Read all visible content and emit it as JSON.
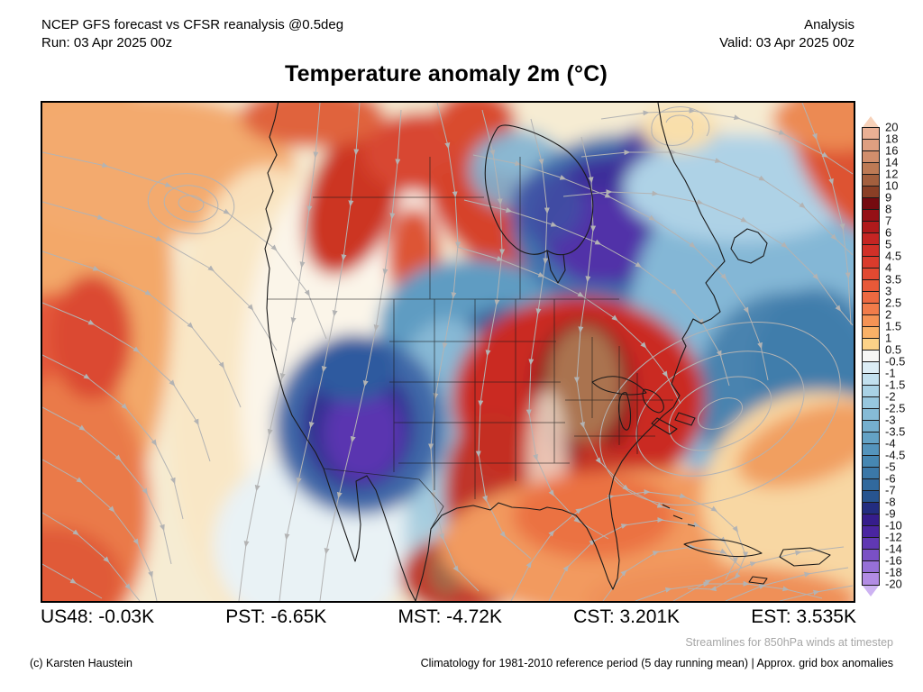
{
  "header": {
    "product_line": "NCEP GFS forecast vs CFSR reanalysis @0.5deg",
    "run_line": "Run: 03 Apr 2025 00z",
    "mode": "Analysis",
    "valid_line": "Valid: 03 Apr 2025 00z"
  },
  "title": "Temperature anomaly 2m (°C)",
  "colorbar": {
    "labels": [
      "20",
      "18",
      "16",
      "14",
      "12",
      "10",
      "9",
      "8",
      "7",
      "6",
      "5",
      "4.5",
      "4",
      "3.5",
      "3",
      "2.5",
      "2",
      "1.5",
      "1",
      "0.5",
      "-0.5",
      "-1",
      "-1.5",
      "-2",
      "-2.5",
      "-3",
      "-3.5",
      "-4",
      "-4.5",
      "-5",
      "-6",
      "-7",
      "-8",
      "-9",
      "-10",
      "-12",
      "-14",
      "-16",
      "-18",
      "-20"
    ],
    "segment_colors": [
      "#eab094",
      "#de9f81",
      "#d18e6c",
      "#bd7a55",
      "#a35f3e",
      "#8a3f26",
      "#750a10",
      "#951016",
      "#b01a1b",
      "#c52523",
      "#d13028",
      "#da3b2c",
      "#e24931",
      "#e85938",
      "#ed6940",
      "#f17c4a",
      "#f59355",
      "#f9b167",
      "#fcd288",
      "#f7f7f5",
      "#dcedf5",
      "#c2e0ee",
      "#a9d2e5",
      "#97c7de",
      "#86bbd6",
      "#75afce",
      "#64a2c5",
      "#5494bc",
      "#4687b2",
      "#3b78a8",
      "#31699d",
      "#27548f",
      "#232d80",
      "#361d8c",
      "#4a25a1",
      "#6038b3",
      "#7a50c5",
      "#9670d7",
      "#b28ce4"
    ],
    "arrow_top_color": "#f7d2ba",
    "arrow_bottom_color": "#cdb3f2"
  },
  "stats": [
    {
      "region": "US48",
      "value": "-0.03K"
    },
    {
      "region": "PST",
      "value": "-6.65K"
    },
    {
      "region": "MST",
      "value": "-4.72K"
    },
    {
      "region": "CST",
      "value": "3.201K"
    },
    {
      "region": "EST",
      "value": "3.535K"
    }
  ],
  "footer": {
    "streamline_note": "Streamlines for 850hPa winds at timestep",
    "credit": "(c) Karsten Haustein",
    "climatology_note": "Climatology for 1981-2010 reference period (5 day running mean) | Approx. grid box anomalies"
  }
}
